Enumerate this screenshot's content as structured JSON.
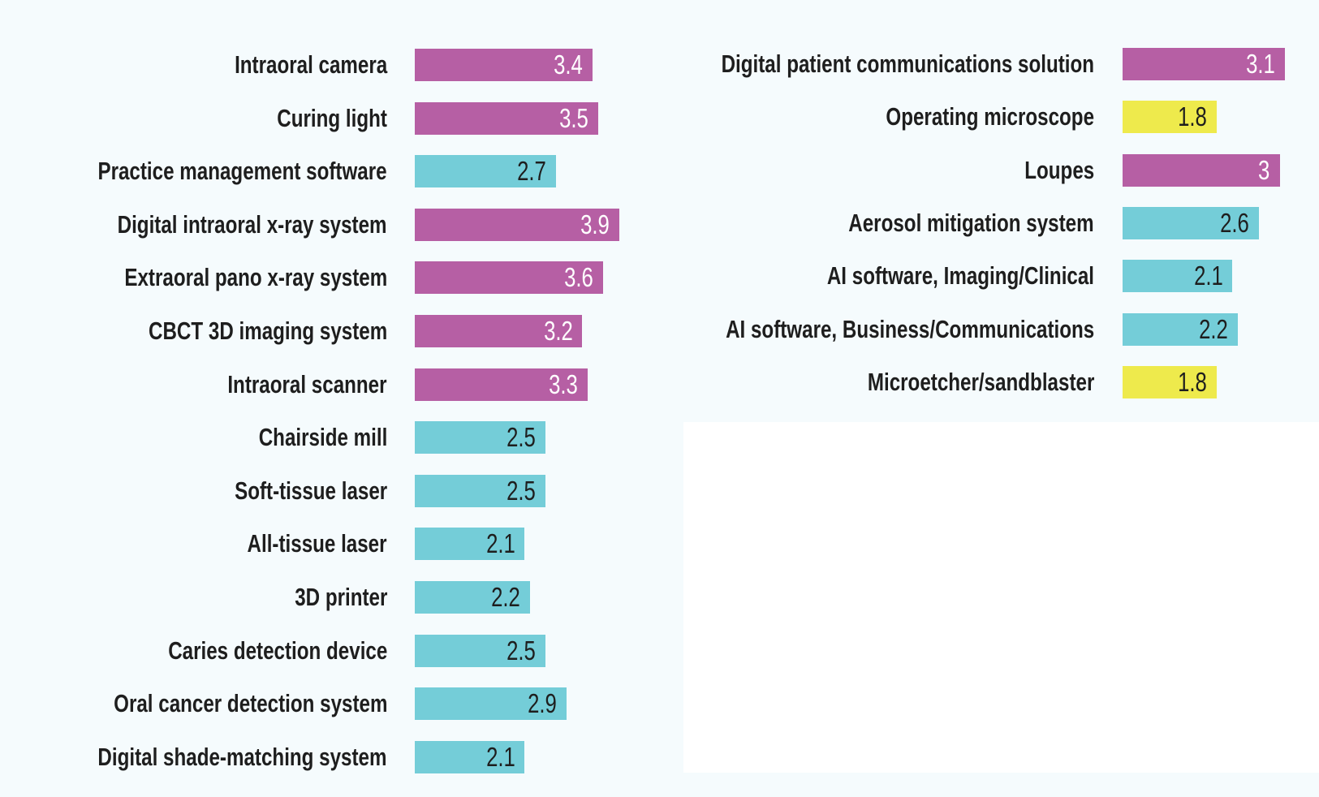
{
  "chart_data": {
    "type": "bar",
    "orientation": "horizontal",
    "legend": "none",
    "grid": false,
    "colors": {
      "magenta": "#b65fa4",
      "cyan": "#74cdd8",
      "yellow": "#eeea4c",
      "label_text": "#1e1e1e",
      "value_text_on_magenta": "#ffffff",
      "value_text_on_light": "#1e1e1e"
    },
    "panels": [
      {
        "name": "left",
        "categories": [
          "Intraoral camera",
          "Curing light",
          "Practice management software",
          "Digital intraoral x-ray system",
          "Extraoral pano x-ray system",
          "CBCT 3D imaging system",
          "Intraoral scanner",
          "Chairside mill",
          "Soft-tissue laser",
          "All-tissue laser",
          "3D printer",
          "Caries detection device",
          "Oral cancer detection system",
          "Digital shade-matching system"
        ],
        "values": [
          3.4,
          3.5,
          2.7,
          3.9,
          3.6,
          3.2,
          3.3,
          2.5,
          2.5,
          2.1,
          2.2,
          2.5,
          2.9,
          2.1
        ],
        "value_labels": [
          "3.4",
          "3.5",
          "2.7",
          "3.9",
          "3.6",
          "3.2",
          "3.3",
          "2.5",
          "2.5",
          "2.1",
          "2.2",
          "2.5",
          "2.9",
          "2.1"
        ],
        "bar_colors": [
          "magenta",
          "magenta",
          "cyan",
          "magenta",
          "magenta",
          "magenta",
          "magenta",
          "cyan",
          "cyan",
          "cyan",
          "cyan",
          "cyan",
          "cyan",
          "cyan"
        ]
      },
      {
        "name": "right",
        "categories": [
          "Digital patient communications solution",
          "Operating microscope",
          "Loupes",
          "Aerosol mitigation system",
          "AI software, Imaging/Clinical",
          "AI software, Business/Communications",
          "Microetcher/sandblaster"
        ],
        "values": [
          3.1,
          1.8,
          3,
          2.6,
          2.1,
          2.2,
          1.8
        ],
        "value_labels": [
          "3.1",
          "1.8",
          "3",
          "2.6",
          "2.1",
          "2.2",
          "1.8"
        ],
        "bar_colors": [
          "magenta",
          "yellow",
          "magenta",
          "cyan",
          "cyan",
          "cyan",
          "yellow"
        ]
      }
    ]
  }
}
